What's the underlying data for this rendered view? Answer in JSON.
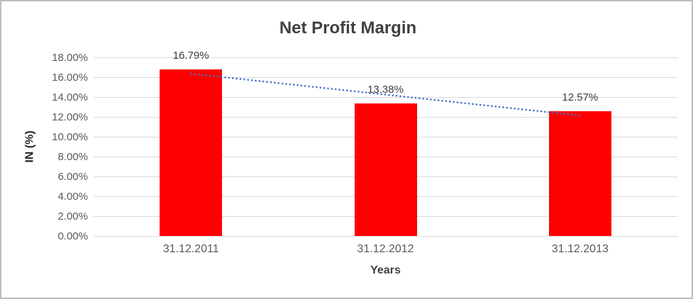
{
  "chart_data": {
    "type": "bar",
    "title": "Net Profit Margin",
    "categories": [
      "31.12.2011",
      "31.12.2012",
      "31.12.2013"
    ],
    "values": [
      16.79,
      13.38,
      12.57
    ],
    "data_labels": [
      "16.79%",
      "13.38%",
      "12.57%"
    ],
    "xlabel": "Years",
    "ylabel": "IN (%)",
    "ylim": [
      0,
      18
    ],
    "ytick_step": 2,
    "yticks_top_to_bottom": [
      "18.00%",
      "16.00%",
      "14.00%",
      "12.00%",
      "10.00%",
      "8.00%",
      "6.00%",
      "4.00%",
      "2.00%",
      "0.00%"
    ],
    "grid": true,
    "legend": "none",
    "bar_color": "#ff0000",
    "trendline": {
      "kind": "linear",
      "style": "dotted",
      "color": "#4472c4"
    },
    "colors": {
      "title_text": "#404040",
      "tick_text": "#595959",
      "gridline": "#d9d9d9",
      "chart_border": "#bdbdbd"
    }
  }
}
